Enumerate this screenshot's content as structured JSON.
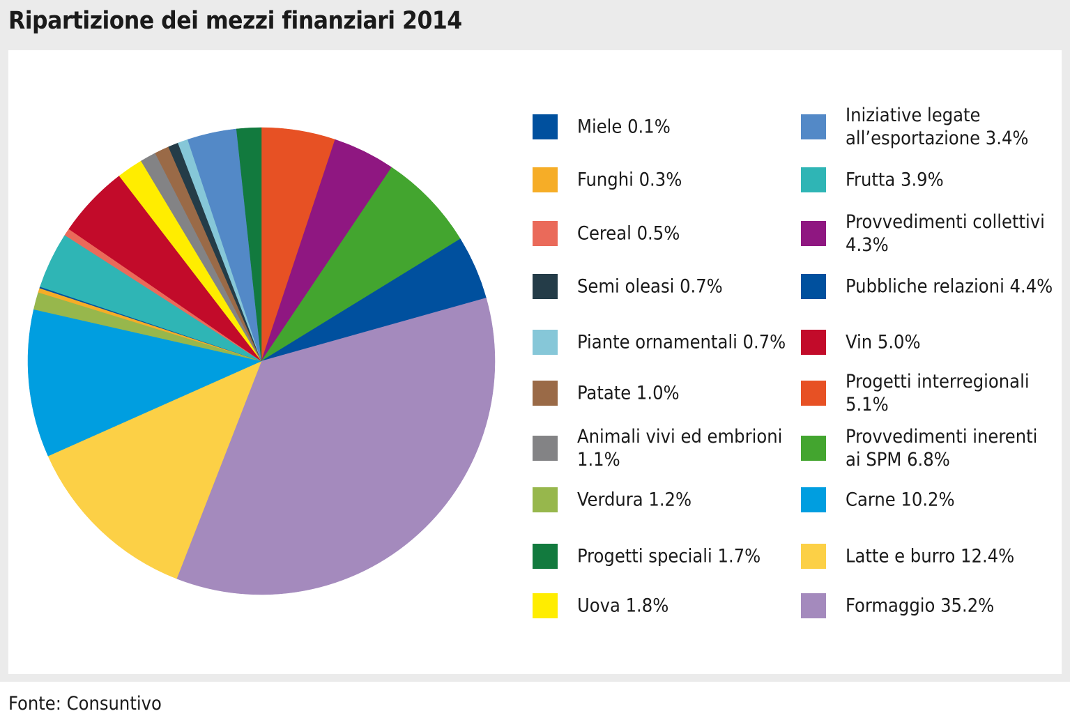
{
  "title": "Ripartizione dei mezzi finanziari 2014",
  "source": "Fonte: Consuntivo",
  "chart_data": {
    "type": "pie",
    "title": "Ripartizione dei mezzi finanziari 2014",
    "unit": "%",
    "start": "12 o'clock",
    "direction": "clockwise",
    "slices": [
      {
        "label": "Progetti interregionali",
        "value": 5.1,
        "color": "#e75124",
        "legend": "Progetti interregionali 5.1%"
      },
      {
        "label": "Provvedimenti collettivi",
        "value": 4.3,
        "color": "#8f1781",
        "legend": "Provvedimenti collettivi 4.3%"
      },
      {
        "label": "Provvedimenti inerenti ai SPM",
        "value": 6.8,
        "color": "#43a52f",
        "legend": "Provvedimenti inerenti ai SPM 6.8%"
      },
      {
        "label": "Pubbliche relazioni",
        "value": 4.4,
        "color": "#00509e",
        "legend": "Pubbliche relazioni 4.4%"
      },
      {
        "label": "Formaggio",
        "value": 35.2,
        "color": "#a48abd",
        "legend": "Formaggio 35.2%"
      },
      {
        "label": "Latte e burro",
        "value": 12.4,
        "color": "#fcd046",
        "legend": "Latte e burro 12.4%"
      },
      {
        "label": "Carne",
        "value": 10.2,
        "color": "#009ee0",
        "legend": "Carne 10.2%"
      },
      {
        "label": "Verdura",
        "value": 1.2,
        "color": "#97b74c",
        "legend": "Verdura 1.2%"
      },
      {
        "label": "Funghi",
        "value": 0.3,
        "color": "#f6ad27",
        "legend": "Funghi 0.3%"
      },
      {
        "label": "Miele",
        "value": 0.1,
        "color": "#00509e",
        "legend": "Miele 0.1%"
      },
      {
        "label": "Frutta",
        "value": 3.9,
        "color": "#2fb5b5",
        "legend": "Frutta 3.9%"
      },
      {
        "label": "Cereal",
        "value": 0.5,
        "color": "#ea6a5a",
        "legend": "Cereal 0.5%"
      },
      {
        "label": "Vin",
        "value": 5.0,
        "color": "#c20b2a",
        "legend": "Vin 5.0%"
      },
      {
        "label": "Uova",
        "value": 1.8,
        "color": "#ffed00",
        "legend": "Uova 1.8%"
      },
      {
        "label": "Animali vivi ed embrioni",
        "value": 1.1,
        "color": "#838385",
        "legend": "Animali vivi ed embrioni 1.1%"
      },
      {
        "label": "Patate",
        "value": 1.0,
        "color": "#9a6a47",
        "legend": "Patate 1.0%"
      },
      {
        "label": "Semi oleasi",
        "value": 0.7,
        "color": "#243c48",
        "legend": "Semi oleasi 0.7%"
      },
      {
        "label": "Piante ornamentali",
        "value": 0.7,
        "color": "#86c7d8",
        "legend": "Piante ornamentali 0.7%"
      },
      {
        "label": "Iniziative legate all'esportazione",
        "value": 3.4,
        "color": "#5389c7",
        "legend": "Iniziative legate all’esportazione 3.4%"
      },
      {
        "label": "Progetti speciali",
        "value": 1.7,
        "color": "#127a3e",
        "legend": "Progetti speciali 1.7%"
      }
    ],
    "legend_left": [
      9,
      8,
      11,
      16,
      17,
      15,
      14,
      7,
      19,
      13
    ],
    "legend_right": [
      18,
      10,
      1,
      3,
      12,
      0,
      2,
      6,
      5,
      4
    ]
  }
}
